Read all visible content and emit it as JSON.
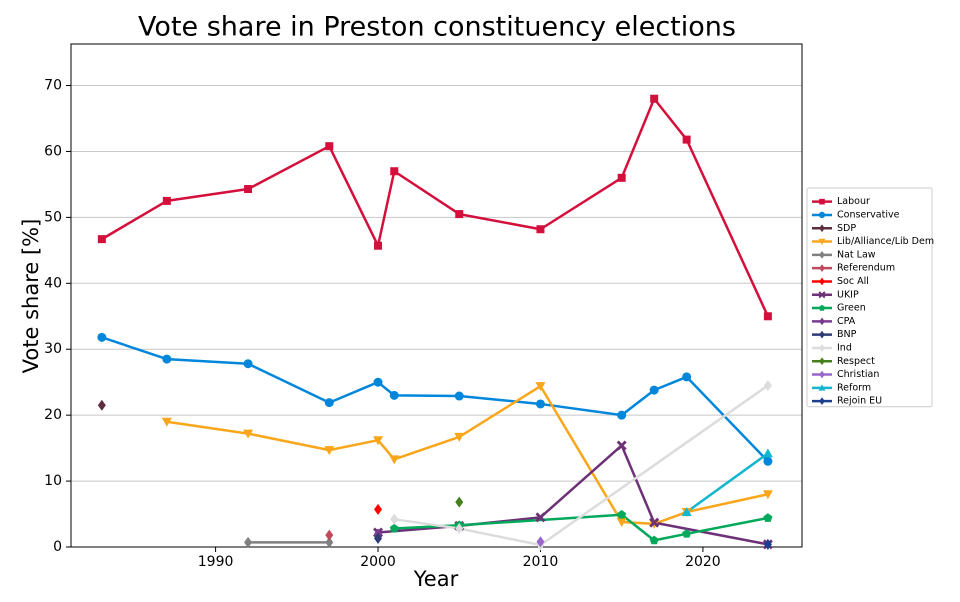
{
  "chart_data": {
    "type": "line",
    "title": "Vote share in Preston constituency elections",
    "x_label": "Year",
    "y_label": "Vote share [%]",
    "xlim": [
      1981.1,
      2026.1
    ],
    "ylim": [
      0,
      76.3
    ],
    "xticks": [
      1990,
      2000,
      2010,
      2020
    ],
    "yticks": [
      0,
      10,
      20,
      30,
      40,
      50,
      60,
      70
    ],
    "grid": "y",
    "legend_position": "right",
    "series": [
      {
        "name": "Labour",
        "color": "#d50f3c",
        "marker": "square",
        "x": [
          1983,
          1987,
          1992,
          1997,
          2000,
          2001,
          2005,
          2010,
          2015,
          2017,
          2019,
          2024
        ],
        "values": [
          46.7,
          52.5,
          54.3,
          60.8,
          45.7,
          57.0,
          50.5,
          48.2,
          56.0,
          68.0,
          61.8,
          35.0
        ]
      },
      {
        "name": "Conservative",
        "color": "#0087dc",
        "marker": "circle",
        "x": [
          1983,
          1987,
          1992,
          1997,
          2000,
          2001,
          2005,
          2010,
          2015,
          2017,
          2019,
          2024
        ],
        "values": [
          31.8,
          28.5,
          27.8,
          21.9,
          25.0,
          23.0,
          22.9,
          21.7,
          20.0,
          23.8,
          25.8,
          13.0
        ]
      },
      {
        "name": "SDP",
        "color": "#5c2e3f",
        "marker": "diamond",
        "x": [
          1983
        ],
        "values": [
          21.5
        ]
      },
      {
        "name": "Lib/Alliance/Lib Dem",
        "color": "#faa61a",
        "marker": "tri-down",
        "x": [
          1987,
          1992,
          1997,
          2000,
          2001,
          2005,
          2010,
          2015,
          2017,
          2019,
          2024
        ],
        "values": [
          19.0,
          17.2,
          14.7,
          16.2,
          13.3,
          16.7,
          24.4,
          3.8,
          3.5,
          5.3,
          8.0
        ]
      },
      {
        "name": "Nat Law",
        "color": "#808080",
        "marker": "diamond",
        "x": [
          1992,
          1997
        ],
        "values": [
          0.7,
          0.7
        ]
      },
      {
        "name": "Referendum",
        "color": "#c04a5d",
        "marker": "diamond",
        "x": [
          1997
        ],
        "values": [
          1.8
        ]
      },
      {
        "name": "Soc All",
        "color": "#ff0000",
        "marker": "diamond",
        "x": [
          2000
        ],
        "values": [
          5.7
        ]
      },
      {
        "name": "UKIP",
        "color": "#6d3177",
        "marker": "x",
        "x": [
          2000,
          2005,
          2010,
          2015,
          2017,
          2024
        ],
        "values": [
          2.2,
          3.2,
          4.5,
          15.4,
          3.7,
          0.4
        ]
      },
      {
        "name": "Green",
        "color": "#02a95b",
        "marker": "pentagon",
        "x": [
          2001,
          2005,
          2015,
          2017,
          2019,
          2024
        ],
        "values": [
          2.8,
          3.3,
          4.9,
          1.0,
          2.0,
          4.4
        ]
      },
      {
        "name": "CPA",
        "color": "#7b3b8f",
        "marker": "diamond",
        "x": [
          2000
        ],
        "values": [
          2.0
        ]
      },
      {
        "name": "BNP",
        "color": "#2e3b74",
        "marker": "diamond",
        "x": [
          2000
        ],
        "values": [
          1.3
        ]
      },
      {
        "name": "Ind",
        "color": "#dcdcdc",
        "marker": "diamond",
        "x": [
          2001,
          2005,
          2010,
          2024
        ],
        "values": [
          4.2,
          2.8,
          0.3,
          24.5
        ]
      },
      {
        "name": "Respect",
        "color": "#46801c",
        "marker": "diamond",
        "x": [
          2005
        ],
        "values": [
          6.8
        ]
      },
      {
        "name": "Christian",
        "color": "#9966cc",
        "marker": "diamond",
        "x": [
          2010
        ],
        "values": [
          0.8
        ]
      },
      {
        "name": "Reform",
        "color": "#12b6cf",
        "marker": "tri-up",
        "x": [
          2019,
          2024
        ],
        "values": [
          5.3,
          14.2
        ]
      },
      {
        "name": "Rejoin EU",
        "color": "#1a3f8f",
        "marker": "diamond",
        "x": [
          2024
        ],
        "values": [
          0.4
        ]
      }
    ]
  }
}
